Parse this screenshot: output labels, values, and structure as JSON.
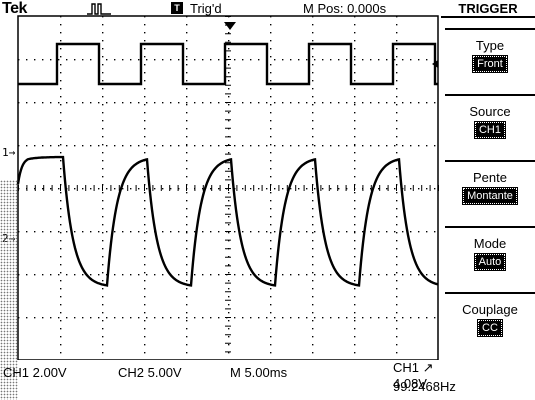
{
  "status_bar": {
    "brand": "Tek",
    "acquisition_icon": "pulse-icon",
    "trigger_badge": "T",
    "trigger_status": "Trig'd",
    "position": "M Pos: 0.000s"
  },
  "menu": {
    "title": "TRIGGER",
    "items": [
      {
        "label": "Type",
        "value": "Front"
      },
      {
        "label": "Source",
        "value": "CH1"
      },
      {
        "label": "Pente",
        "value": "Montante"
      },
      {
        "label": "Mode",
        "value": "Auto"
      },
      {
        "label": "Couplage",
        "value": "CC"
      }
    ]
  },
  "readout": {
    "ch1_scale": "CH1  2.00V",
    "ch2_scale": "CH2  5.00V",
    "timebase": "M 5.00ms",
    "trigger": "CH1 ↗ 4.08V",
    "frequency": "99.2468Hz"
  },
  "markers": {
    "ch1": "1→",
    "ch2": "2→"
  }
}
